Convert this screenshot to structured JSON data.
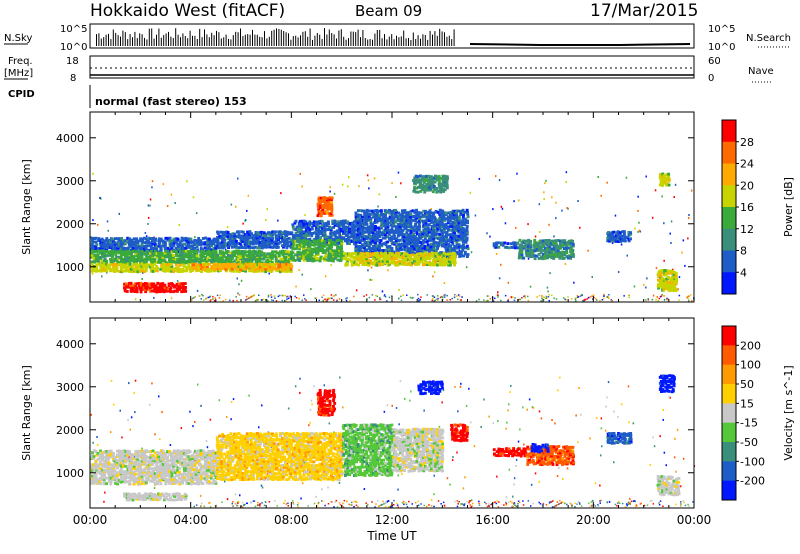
{
  "header": {
    "title": "Hokkaido West (fitACF)",
    "beam": "Beam 09",
    "date": "17/Mar/2015"
  },
  "panels": {
    "nsky_label": "N.Sky",
    "nsearch_label": "N.Search",
    "nsky_ticks": [
      "10^5",
      "10^0"
    ],
    "nsky_right_ticks": [
      "10^5",
      "10^0"
    ],
    "freq_label": "Freq.",
    "freq_unit": "[MHz]",
    "freq_ticks": [
      "18",
      "8"
    ],
    "nave_ticks": [
      "60",
      "0"
    ],
    "nave_label": "Nave",
    "cpid_label": "CPID",
    "cpid_text": "normal (fast stereo) 153"
  },
  "chart_data": [
    {
      "type": "heatmap",
      "name": "power",
      "ylabel": "Slant Range [km]",
      "yticks": [
        "1000",
        "2000",
        "3000",
        "4000"
      ],
      "ylim": [
        180,
        4600
      ],
      "colorbar_label": "Power [dB]",
      "colorbar_ticks": [
        "4",
        "8",
        "12",
        "16",
        "20",
        "24",
        "28"
      ],
      "colors": [
        "#0018ff",
        "#1e5cc8",
        "#3a8f7a",
        "#3aaa3a",
        "#c8d400",
        "#ffaa00",
        "#ff6a00",
        "#ff0000"
      ],
      "regions": [
        {
          "t0": 0.0,
          "t1": 5.0,
          "r0": 1300,
          "r1": 1650,
          "level": 1
        },
        {
          "t0": 5.0,
          "t1": 8.0,
          "r0": 1400,
          "r1": 1800,
          "level": 1
        },
        {
          "t0": 8.0,
          "t1": 10.5,
          "r0": 1500,
          "r1": 2050,
          "level": 1
        },
        {
          "t0": 10.5,
          "t1": 15.0,
          "r0": 1200,
          "r1": 2300,
          "level": 1
        },
        {
          "t0": 0.0,
          "t1": 8.0,
          "r0": 1050,
          "r1": 1350,
          "level": 3
        },
        {
          "t0": 0.0,
          "t1": 8.0,
          "r0": 850,
          "r1": 1050,
          "level": 4
        },
        {
          "t0": 4.0,
          "t1": 8.0,
          "r0": 900,
          "r1": 1050,
          "level": 5
        },
        {
          "t0": 1.3,
          "t1": 3.8,
          "r0": 380,
          "r1": 600,
          "level": 7
        },
        {
          "t0": 8.0,
          "t1": 10.0,
          "r0": 1100,
          "r1": 1600,
          "level": 3
        },
        {
          "t0": 9.0,
          "t1": 9.6,
          "r0": 2150,
          "r1": 2600,
          "level": 6
        },
        {
          "t0": 10.0,
          "t1": 14.5,
          "r0": 1000,
          "r1": 1300,
          "level": 4
        },
        {
          "t0": 12.8,
          "t1": 14.2,
          "r0": 2700,
          "r1": 3100,
          "level": 2
        },
        {
          "t0": 16.0,
          "t1": 17.0,
          "r0": 1400,
          "r1": 1550,
          "level": 1
        },
        {
          "t0": 17.0,
          "t1": 19.2,
          "r0": 1150,
          "r1": 1600,
          "level": 2
        },
        {
          "t0": 20.5,
          "t1": 21.5,
          "r0": 1550,
          "r1": 1800,
          "level": 1
        },
        {
          "t0": 22.5,
          "t1": 23.3,
          "r0": 400,
          "r1": 900,
          "level": 4
        },
        {
          "t0": 22.6,
          "t1": 23.0,
          "r0": 2850,
          "r1": 3150,
          "level": 4
        }
      ]
    },
    {
      "type": "heatmap",
      "name": "velocity",
      "ylabel": "Slant Range [km]",
      "yticks": [
        "1000",
        "2000",
        "3000",
        "4000"
      ],
      "ylim": [
        180,
        4600
      ],
      "xlabel": "Time UT",
      "xticks": [
        "00:00",
        "04:00",
        "08:00",
        "12:00",
        "16:00",
        "20:00",
        "00:00"
      ],
      "xlim": [
        0,
        24
      ],
      "colorbar_label": "Velocity [m s^-1]",
      "colorbar_ticks": [
        "200",
        "100",
        "50",
        "15",
        "-15",
        "-50",
        "-100",
        "-200"
      ],
      "colors": [
        "#0018ff",
        "#1e5cc8",
        "#3a8f7a",
        "#55c83a",
        "#c8c8c8",
        "#ffd000",
        "#ff9a00",
        "#ff5a00",
        "#ff0000"
      ],
      "regions": [
        {
          "t0": 0.0,
          "t1": 5.0,
          "r0": 700,
          "r1": 1500,
          "level": 4
        },
        {
          "t0": 5.0,
          "t1": 10.0,
          "r0": 800,
          "r1": 1900,
          "level": 5
        },
        {
          "t0": 1.3,
          "t1": 3.8,
          "r0": 330,
          "r1": 500,
          "level": 4
        },
        {
          "t0": 9.0,
          "t1": 9.7,
          "r0": 2300,
          "r1": 2900,
          "level": 8
        },
        {
          "t0": 10.0,
          "t1": 12.0,
          "r0": 900,
          "r1": 2100,
          "level": 3
        },
        {
          "t0": 12.0,
          "t1": 14.0,
          "r0": 1000,
          "r1": 2000,
          "level": 4
        },
        {
          "t0": 14.3,
          "t1": 15.0,
          "r0": 1700,
          "r1": 2100,
          "level": 8
        },
        {
          "t0": 13.0,
          "t1": 14.0,
          "r0": 2800,
          "r1": 3100,
          "level": 0
        },
        {
          "t0": 16.0,
          "t1": 17.3,
          "r0": 1350,
          "r1": 1550,
          "level": 8
        },
        {
          "t0": 17.3,
          "t1": 19.2,
          "r0": 1150,
          "r1": 1600,
          "level": 7
        },
        {
          "t0": 17.5,
          "t1": 18.2,
          "r0": 1450,
          "r1": 1650,
          "level": 0
        },
        {
          "t0": 20.5,
          "t1": 21.5,
          "r0": 1650,
          "r1": 1900,
          "level": 1
        },
        {
          "t0": 22.5,
          "t1": 23.4,
          "r0": 450,
          "r1": 900,
          "level": 4
        },
        {
          "t0": 22.6,
          "t1": 23.2,
          "r0": 2850,
          "r1": 3250,
          "level": 0
        }
      ]
    }
  ]
}
